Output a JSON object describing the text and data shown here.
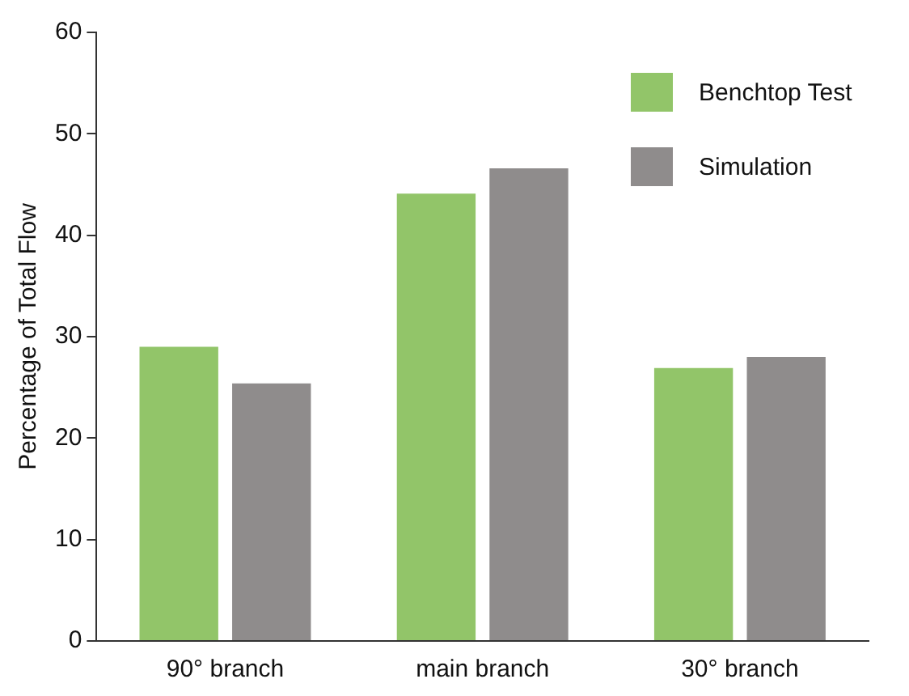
{
  "chart_data": {
    "type": "bar",
    "ylabel": "Percentage of Total Flow",
    "categories": [
      "90° branch",
      "main branch",
      "30° branch"
    ],
    "series": [
      {
        "name": "Benchtop Test",
        "color": "#92c569",
        "values": [
          29.0,
          44.1,
          26.9
        ]
      },
      {
        "name": "Simulation",
        "color": "#8f8c8c",
        "values": [
          25.4,
          46.6,
          28.0
        ]
      }
    ],
    "ylim": [
      0,
      60
    ],
    "yticks": [
      0,
      10,
      20,
      30,
      40,
      50,
      60
    ],
    "grid": false,
    "legend": "top right"
  }
}
